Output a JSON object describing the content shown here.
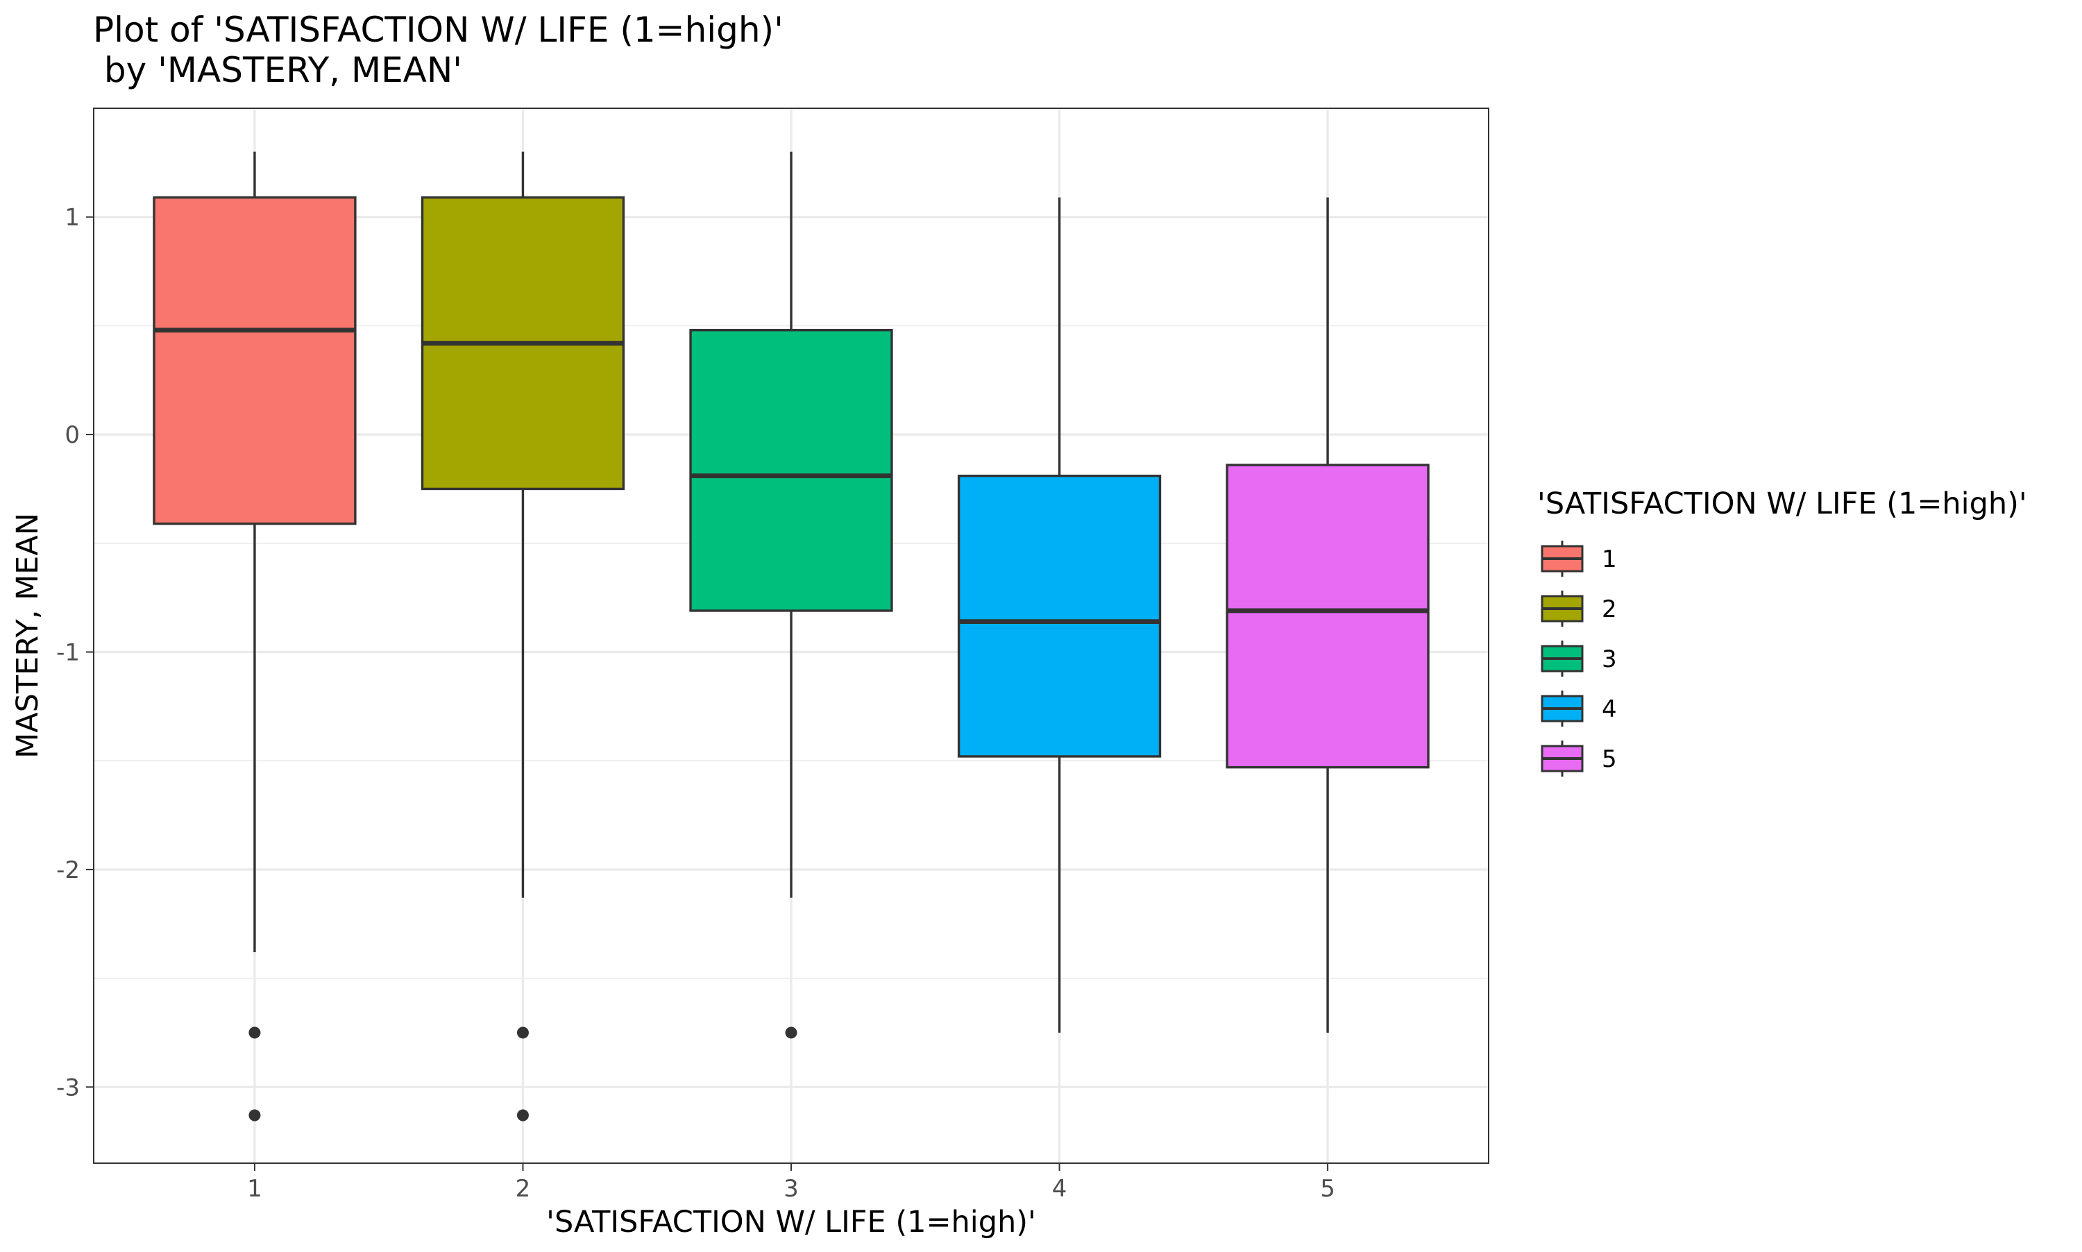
{
  "chart_data": {
    "type": "box",
    "title": "Plot of 'SATISFACTION W/ LIFE (1=high)'\n by 'MASTERY, MEAN'",
    "title_lines": [
      "Plot of 'SATISFACTION W/ LIFE (1=high)'",
      " by 'MASTERY, MEAN'"
    ],
    "xlabel": "'SATISFACTION W/ LIFE (1=high)'",
    "ylabel": "MASTERY, MEAN",
    "categories": [
      "1",
      "2",
      "3",
      "4",
      "5"
    ],
    "ylim": [
      -3.35,
      1.5
    ],
    "yticks": [
      -3,
      -2,
      -1,
      0,
      1
    ],
    "ytick_labels": [
      "-3",
      "-2",
      "-1",
      "0",
      "1"
    ],
    "grid": true,
    "legend": {
      "title": "'SATISFACTION W/ LIFE (1=high)'",
      "position": "right",
      "labels": [
        "1",
        "2",
        "3",
        "4",
        "5"
      ]
    },
    "boxes": [
      {
        "category": "1",
        "whisker_low": -2.38,
        "q1": -0.41,
        "median": 0.48,
        "q3": 1.09,
        "whisker_high": 1.3,
        "outliers": [
          -2.75,
          -3.13
        ],
        "color": "#F8766D"
      },
      {
        "category": "2",
        "whisker_low": -2.13,
        "q1": -0.25,
        "median": 0.42,
        "q3": 1.09,
        "whisker_high": 1.3,
        "outliers": [
          -2.75,
          -3.13
        ],
        "color": "#A3A500"
      },
      {
        "category": "3",
        "whisker_low": -2.13,
        "q1": -0.81,
        "median": -0.19,
        "q3": 0.48,
        "whisker_high": 1.3,
        "outliers": [
          -2.75
        ],
        "color": "#00BF7D"
      },
      {
        "category": "4",
        "whisker_low": -2.75,
        "q1": -1.48,
        "median": -0.86,
        "q3": -0.19,
        "whisker_high": 1.09,
        "outliers": [],
        "color": "#00B0F6"
      },
      {
        "category": "5",
        "whisker_low": -2.75,
        "q1": -1.53,
        "median": -0.81,
        "q3": -0.14,
        "whisker_high": 1.09,
        "outliers": [],
        "color": "#E76BF3"
      }
    ]
  }
}
